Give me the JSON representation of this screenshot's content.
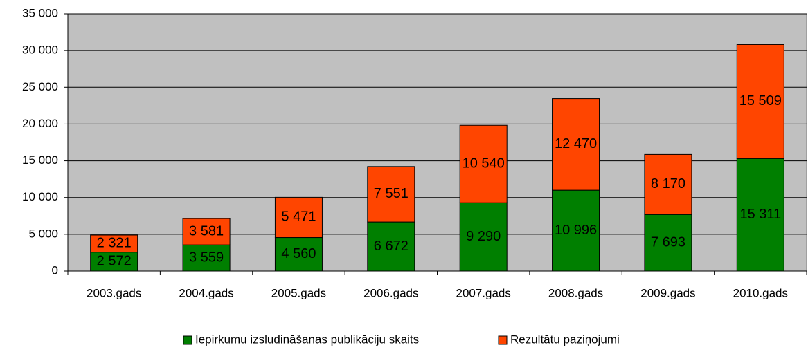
{
  "chart_data": {
    "type": "stacked_bar",
    "categories": [
      "2003.gads",
      "2004.gads",
      "2005.gads",
      "2006.gads",
      "2007.gads",
      "2008.gads",
      "2009.gads",
      "2010.gads"
    ],
    "series": [
      {
        "name": "Iepirkumu izsludināšanas publikāciju skaits",
        "color": "#007f00",
        "values": [
          2572,
          3559,
          4560,
          6672,
          9290,
          10996,
          7693,
          15311
        ],
        "value_labels": [
          "2 572",
          "3 559",
          "4 560",
          "6 672",
          "9 290",
          "10 996",
          "7 693",
          "15 311"
        ]
      },
      {
        "name": "Rezultātu paziņojumi",
        "color": "#ff4500",
        "values": [
          2321,
          3581,
          5471,
          7551,
          10540,
          12470,
          8170,
          15509
        ],
        "value_labels": [
          "2 321",
          "3 581",
          "5 471",
          "7 551",
          "10 540",
          "12 470",
          "8 170",
          "15 509"
        ]
      }
    ],
    "ylim": [
      0,
      35000
    ],
    "yticks": [
      {
        "value": 0,
        "label": "0"
      },
      {
        "value": 5000,
        "label": "5 000"
      },
      {
        "value": 10000,
        "label": "10 000"
      },
      {
        "value": 15000,
        "label": "15 000"
      },
      {
        "value": 20000,
        "label": "20 000"
      },
      {
        "value": 25000,
        "label": "25 000"
      },
      {
        "value": 30000,
        "label": "30 000"
      },
      {
        "value": 35000,
        "label": "35 000"
      }
    ],
    "grid": true,
    "legend": "bottom",
    "plot_background": "#c0c0c0"
  }
}
